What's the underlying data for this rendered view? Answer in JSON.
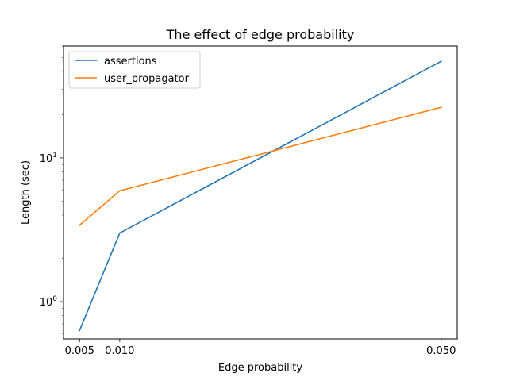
{
  "chart_data": {
    "type": "line",
    "title": "The effect of edge probability",
    "xlabel": "Edge probability",
    "ylabel": "Length (sec)",
    "x": [
      0.005,
      0.01,
      0.05
    ],
    "x_tick_labels": [
      "0.005",
      "0.010",
      "0.050"
    ],
    "xlim": [
      0.003,
      0.052
    ],
    "y_scale": "log",
    "ylim": [
      0.55,
      60
    ],
    "y_ticks": [
      {
        "value": 1,
        "base": "10",
        "exp": "0"
      },
      {
        "value": 10,
        "base": "10",
        "exp": "1"
      }
    ],
    "grid": false,
    "legend_position": "upper left",
    "series": [
      {
        "name": "assertions",
        "color": "#1f77b4",
        "values": [
          0.63,
          3.0,
          47.0
        ]
      },
      {
        "name": "user_propagator",
        "color": "#ff7f0e",
        "values": [
          3.4,
          5.9,
          22.5
        ]
      }
    ]
  }
}
